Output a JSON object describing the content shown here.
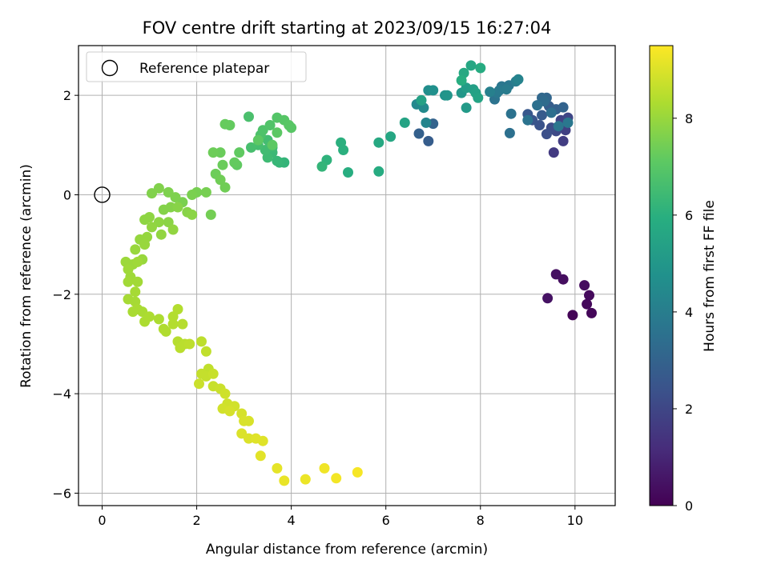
{
  "chart_data": {
    "type": "scatter",
    "title": "FOV centre drift starting at 2023/09/15 16:27:04",
    "xlabel": "Angular distance from reference (arcmin)",
    "ylabel": "Rotation from reference (arcmin)",
    "xlim": [
      -0.5,
      10.85
    ],
    "ylim": [
      -6.25,
      3.0
    ],
    "xticks": [
      0,
      2,
      4,
      6,
      8,
      10
    ],
    "yticks": [
      -6,
      -4,
      -2,
      0,
      2
    ],
    "grid": true,
    "legend": {
      "placement": "top-left",
      "entries": [
        "Reference platepar"
      ]
    },
    "reference_point": {
      "x": 0,
      "y": 0
    },
    "colorbar": {
      "label": "Hours from first FF file",
      "min": 0,
      "max": 9.5,
      "ticks": [
        0,
        2,
        4,
        6,
        8
      ],
      "colormap": "viridis"
    },
    "points": [
      [
        9.95,
        -2.42,
        0.1
      ],
      [
        10.35,
        -2.38,
        0.15
      ],
      [
        10.25,
        -2.2,
        0.2
      ],
      [
        10.3,
        -2.02,
        0.25
      ],
      [
        10.2,
        -1.82,
        0.3
      ],
      [
        9.75,
        -1.7,
        0.35
      ],
      [
        9.6,
        -1.6,
        0.4
      ],
      [
        9.42,
        -2.08,
        0.45
      ],
      [
        9.55,
        0.85,
        1.6
      ],
      [
        9.75,
        1.08,
        1.7
      ],
      [
        9.8,
        1.3,
        1.8
      ],
      [
        9.7,
        1.5,
        1.9
      ],
      [
        9.85,
        1.55,
        2.0
      ],
      [
        9.6,
        1.28,
        2.1
      ],
      [
        9.5,
        1.35,
        2.2
      ],
      [
        9.4,
        1.22,
        2.3
      ],
      [
        9.25,
        1.4,
        2.4
      ],
      [
        9.1,
        1.5,
        2.5
      ],
      [
        9.0,
        1.62,
        2.6
      ],
      [
        9.3,
        1.6,
        2.7
      ],
      [
        9.45,
        1.78,
        2.8
      ],
      [
        9.6,
        1.72,
        2.9
      ],
      [
        9.75,
        1.76,
        3.0
      ],
      [
        9.4,
        1.95,
        3.1
      ],
      [
        9.3,
        1.95,
        3.2
      ],
      [
        9.35,
        1.88,
        3.3
      ],
      [
        9.5,
        1.65,
        3.4
      ],
      [
        9.2,
        1.8,
        3.5
      ],
      [
        9.0,
        1.5,
        3.6
      ],
      [
        9.65,
        1.38,
        3.7
      ],
      [
        9.85,
        1.45,
        3.75
      ],
      [
        8.62,
        1.24,
        3.5
      ],
      [
        8.65,
        1.63,
        3.55
      ],
      [
        8.3,
        1.92,
        3.6
      ],
      [
        8.45,
        2.18,
        3.7
      ],
      [
        8.6,
        2.2,
        3.75
      ],
      [
        8.35,
        2.05,
        3.8
      ],
      [
        8.4,
        2.1,
        3.85
      ],
      [
        8.55,
        2.12,
        3.9
      ],
      [
        8.75,
        2.28,
        4.0
      ],
      [
        6.9,
        1.08,
        2.8
      ],
      [
        6.7,
        1.23,
        2.9
      ],
      [
        7.0,
        1.43,
        3.0
      ],
      [
        8.2,
        2.07,
        4.1
      ],
      [
        8.8,
        2.32,
        4.2
      ],
      [
        6.85,
        1.45,
        4.3
      ],
      [
        6.65,
        1.82,
        4.4
      ],
      [
        6.8,
        1.75,
        4.5
      ],
      [
        6.9,
        2.1,
        4.6
      ],
      [
        7.0,
        2.1,
        4.7
      ],
      [
        7.25,
        2.0,
        4.8
      ],
      [
        7.3,
        2.0,
        4.9
      ],
      [
        7.6,
        2.05,
        5.0
      ],
      [
        7.7,
        1.75,
        5.1
      ],
      [
        7.7,
        2.15,
        5.2
      ],
      [
        7.85,
        2.12,
        5.3
      ],
      [
        7.9,
        2.05,
        5.4
      ],
      [
        7.95,
        1.95,
        5.5
      ],
      [
        7.8,
        2.6,
        5.6
      ],
      [
        7.65,
        2.45,
        5.7
      ],
      [
        8.0,
        2.55,
        5.8
      ],
      [
        7.6,
        2.3,
        5.9
      ],
      [
        6.75,
        1.9,
        5.4
      ],
      [
        6.4,
        1.45,
        5.5
      ],
      [
        6.1,
        1.17,
        5.6
      ],
      [
        5.85,
        1.05,
        5.7
      ],
      [
        5.85,
        0.47,
        5.8
      ],
      [
        5.2,
        0.45,
        5.9
      ],
      [
        5.1,
        0.9,
        6.0
      ],
      [
        5.05,
        1.05,
        6.0
      ],
      [
        4.75,
        0.7,
        6.1
      ],
      [
        4.65,
        0.57,
        6.2
      ],
      [
        3.85,
        0.65,
        6.2
      ],
      [
        3.75,
        0.65,
        6.25
      ],
      [
        3.7,
        0.68,
        6.3
      ],
      [
        3.6,
        0.85,
        6.35
      ],
      [
        3.6,
        0.95,
        6.4
      ],
      [
        3.5,
        0.75,
        6.45
      ],
      [
        3.45,
        0.9,
        6.5
      ],
      [
        3.5,
        1.1,
        6.55
      ],
      [
        3.3,
        1.0,
        6.6
      ],
      [
        3.15,
        0.95,
        6.65
      ],
      [
        3.1,
        1.57,
        6.7
      ],
      [
        3.35,
        1.2,
        6.75
      ],
      [
        3.4,
        1.3,
        6.8
      ],
      [
        3.55,
        1.4,
        6.85
      ],
      [
        3.7,
        1.55,
        6.9
      ],
      [
        3.85,
        1.5,
        6.95
      ],
      [
        3.95,
        1.4,
        7.0
      ],
      [
        4.0,
        1.35,
        7.0
      ],
      [
        3.7,
        1.25,
        7.05
      ],
      [
        3.6,
        1.0,
        7.1
      ],
      [
        3.3,
        1.1,
        7.1
      ],
      [
        2.9,
        0.85,
        7.15
      ],
      [
        2.85,
        0.6,
        7.15
      ],
      [
        2.8,
        0.65,
        7.2
      ],
      [
        2.7,
        1.4,
        7.2
      ],
      [
        2.6,
        1.42,
        7.25
      ],
      [
        2.5,
        0.85,
        7.3
      ],
      [
        2.55,
        0.6,
        7.3
      ],
      [
        2.4,
        0.42,
        7.35
      ],
      [
        2.35,
        0.85,
        7.35
      ],
      [
        2.5,
        0.3,
        7.4
      ],
      [
        2.6,
        0.15,
        7.4
      ],
      [
        2.3,
        -0.4,
        7.45
      ],
      [
        2.2,
        0.05,
        7.5
      ],
      [
        2.0,
        0.05,
        7.5
      ],
      [
        1.9,
        0.0,
        7.55
      ],
      [
        1.7,
        -0.15,
        7.55
      ],
      [
        1.55,
        -0.05,
        7.6
      ],
      [
        1.4,
        0.05,
        7.6
      ],
      [
        1.2,
        0.13,
        7.65
      ],
      [
        1.05,
        0.03,
        7.65
      ],
      [
        1.3,
        -0.3,
        7.7
      ],
      [
        1.45,
        -0.25,
        7.7
      ],
      [
        1.6,
        -0.25,
        7.75
      ],
      [
        1.8,
        -0.35,
        7.75
      ],
      [
        1.9,
        -0.4,
        7.8
      ],
      [
        1.4,
        -0.55,
        7.8
      ],
      [
        1.2,
        -0.55,
        7.85
      ],
      [
        1.0,
        -0.45,
        7.85
      ],
      [
        0.9,
        -0.5,
        7.85
      ],
      [
        1.05,
        -0.65,
        7.9
      ],
      [
        1.25,
        -0.8,
        7.9
      ],
      [
        1.5,
        -0.7,
        7.9
      ],
      [
        0.95,
        -0.85,
        7.95
      ],
      [
        0.8,
        -0.9,
        7.95
      ],
      [
        0.9,
        -1.0,
        8.0
      ],
      [
        0.7,
        -1.1,
        8.0
      ],
      [
        0.85,
        -1.3,
        8.0
      ],
      [
        0.65,
        -1.4,
        8.05
      ],
      [
        0.5,
        -1.35,
        8.05
      ],
      [
        0.55,
        -1.5,
        8.1
      ],
      [
        0.75,
        -1.35,
        8.1
      ],
      [
        0.6,
        -1.65,
        8.1
      ],
      [
        0.55,
        -1.75,
        8.15
      ],
      [
        0.75,
        -1.75,
        8.15
      ],
      [
        0.7,
        -1.95,
        8.2
      ],
      [
        0.55,
        -2.1,
        8.2
      ],
      [
        0.7,
        -2.15,
        8.2
      ],
      [
        0.75,
        -2.3,
        8.25
      ],
      [
        0.85,
        -2.35,
        8.25
      ],
      [
        0.65,
        -2.35,
        8.25
      ],
      [
        0.9,
        -2.55,
        8.3
      ],
      [
        1.0,
        -2.45,
        8.3
      ],
      [
        1.2,
        -2.5,
        8.3
      ],
      [
        1.3,
        -2.7,
        8.35
      ],
      [
        1.35,
        -2.75,
        8.35
      ],
      [
        1.5,
        -2.45,
        8.4
      ],
      [
        1.5,
        -2.6,
        8.4
      ],
      [
        1.6,
        -2.3,
        8.4
      ],
      [
        1.7,
        -2.6,
        8.45
      ],
      [
        1.6,
        -2.95,
        8.45
      ],
      [
        1.75,
        -3.0,
        8.5
      ],
      [
        1.65,
        -3.08,
        8.5
      ],
      [
        1.85,
        -3.0,
        8.55
      ],
      [
        2.1,
        -2.95,
        8.55
      ],
      [
        2.2,
        -3.15,
        8.6
      ],
      [
        2.25,
        -3.5,
        8.6
      ],
      [
        2.1,
        -3.6,
        8.65
      ],
      [
        2.2,
        -3.65,
        8.65
      ],
      [
        2.35,
        -3.6,
        8.7
      ],
      [
        2.35,
        -3.85,
        8.7
      ],
      [
        2.05,
        -3.8,
        8.75
      ],
      [
        2.5,
        -3.9,
        8.75
      ],
      [
        2.6,
        -4.0,
        8.8
      ],
      [
        2.65,
        -4.2,
        8.8
      ],
      [
        2.8,
        -4.25,
        8.85
      ],
      [
        2.55,
        -4.3,
        8.85
      ],
      [
        2.7,
        -4.35,
        8.9
      ],
      [
        2.95,
        -4.4,
        8.9
      ],
      [
        3.0,
        -4.55,
        8.95
      ],
      [
        3.1,
        -4.55,
        8.95
      ],
      [
        2.95,
        -4.8,
        9.0
      ],
      [
        3.1,
        -4.9,
        9.0
      ],
      [
        3.25,
        -4.9,
        9.05
      ],
      [
        3.4,
        -4.95,
        9.05
      ],
      [
        3.35,
        -5.25,
        9.1
      ],
      [
        3.7,
        -5.5,
        9.15
      ],
      [
        3.85,
        -5.75,
        9.2
      ],
      [
        4.3,
        -5.72,
        9.25
      ],
      [
        4.7,
        -5.5,
        9.3
      ],
      [
        4.95,
        -5.7,
        9.35
      ],
      [
        5.4,
        -5.58,
        9.4
      ]
    ]
  }
}
